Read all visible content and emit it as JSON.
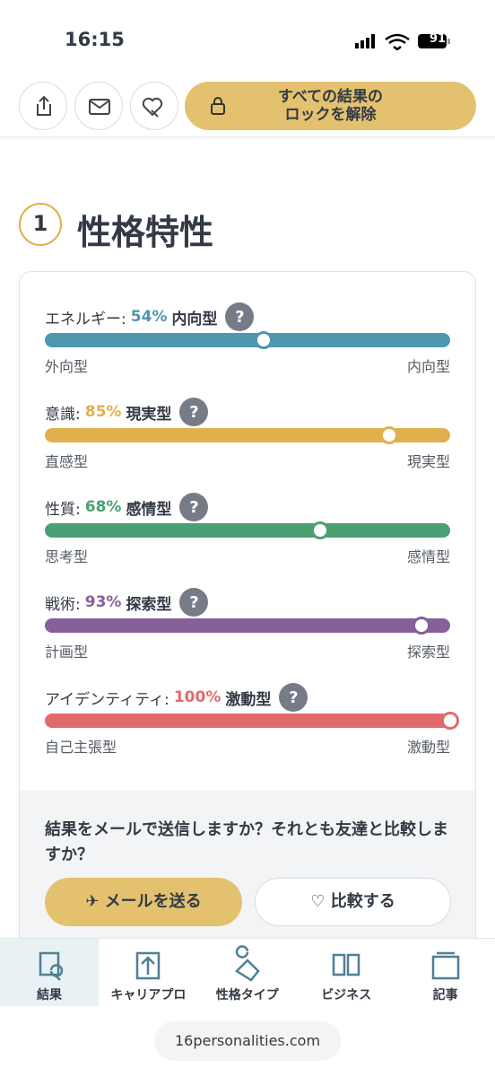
{
  "status_bar": {
    "time": "16:15",
    "battery": "91"
  },
  "toolbar": {
    "unlock_lines": [
      "すべての結果の",
      "ロックを解除"
    ]
  },
  "section": {
    "number": "1",
    "title": "性格特性"
  },
  "help_label": "?",
  "traits": [
    {
      "label": "エネルギー:",
      "value": 54,
      "value_label": "54%",
      "type": "内向型",
      "left": "外向型",
      "right": "内向型",
      "color": "#4f96b0"
    },
    {
      "label": "意識:",
      "value": 85,
      "value_label": "85%",
      "type": "現実型",
      "left": "直感型",
      "right": "現実型",
      "color": "#e0b04c"
    },
    {
      "label": "性質:",
      "value": 68,
      "value_label": "68%",
      "type": "感情型",
      "left": "思考型",
      "right": "感情型",
      "color": "#4ba073"
    },
    {
      "label": "戦術:",
      "value": 93,
      "value_label": "93%",
      "type": "探索型",
      "left": "計画型",
      "right": "探索型",
      "color": "#86609a"
    },
    {
      "label": "アイデンティティ:",
      "value": 100,
      "value_label": "100%",
      "type": "激動型",
      "left": "自己主張型",
      "right": "激動型",
      "color": "#e36a6b"
    }
  ],
  "share": {
    "question": "結果をメールで送信しますか？それとも友達と比較しますか？",
    "email_button": "メールを送る",
    "compare_button": "比較する"
  },
  "nav": [
    "結果",
    "キャリアプロ",
    "性格タイプ",
    "ビジネス",
    "記事"
  ],
  "url": "16personalities.com"
}
